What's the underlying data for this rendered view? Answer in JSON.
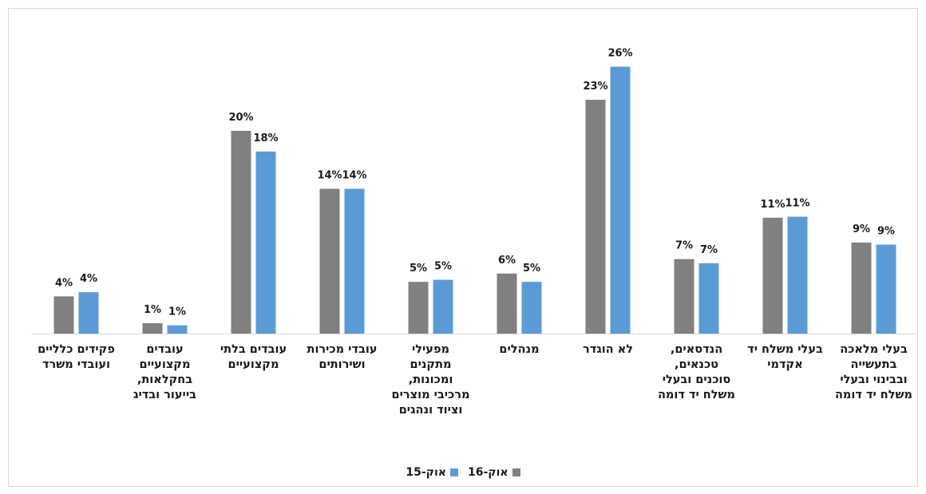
{
  "chart_data": {
    "type": "bar",
    "categories": [
      "פקידים כלליים ועובדי משרד",
      "עובדים מקצועיים בחקלאות, בייעור ובדיג",
      "עובדים בלתי מקצועיים",
      "עובדי מכירות ושירותים",
      "מפעילי מתקנים ומכונות, מרכיבי מוצרים וציוד ונהגים",
      "מנהלים",
      "לא הוגדר",
      "הנדסאים, טכנאים, סוכנים ובעלי משלח יד דומה",
      "בעלי משלח יד אקדמי",
      "בעלי מלאכה בתעשייה ובבינוי ובעלי משלח יד דומה"
    ],
    "series": [
      {
        "name": "אוק-16",
        "color": "#808080",
        "values": [
          3.6,
          1.0,
          19.6,
          14.0,
          5.0,
          5.8,
          22.6,
          7.2,
          11.2,
          8.8
        ],
        "labels": [
          "4%",
          "1%",
          "20%",
          "14%",
          "5%",
          "6%",
          "23%",
          "7%",
          "11%",
          "9%"
        ]
      },
      {
        "name": "אוק-15",
        "color": "#5b9bd5",
        "values": [
          4.0,
          0.8,
          17.6,
          14.0,
          5.2,
          5.0,
          25.8,
          6.8,
          11.3,
          8.6
        ],
        "labels": [
          "4%",
          "1%",
          "18%",
          "14%",
          "5%",
          "5%",
          "26%",
          "7%",
          "11%",
          "9%"
        ]
      }
    ],
    "ylim": [
      0,
      28
    ],
    "grid": false,
    "legend_position": "bottom"
  }
}
